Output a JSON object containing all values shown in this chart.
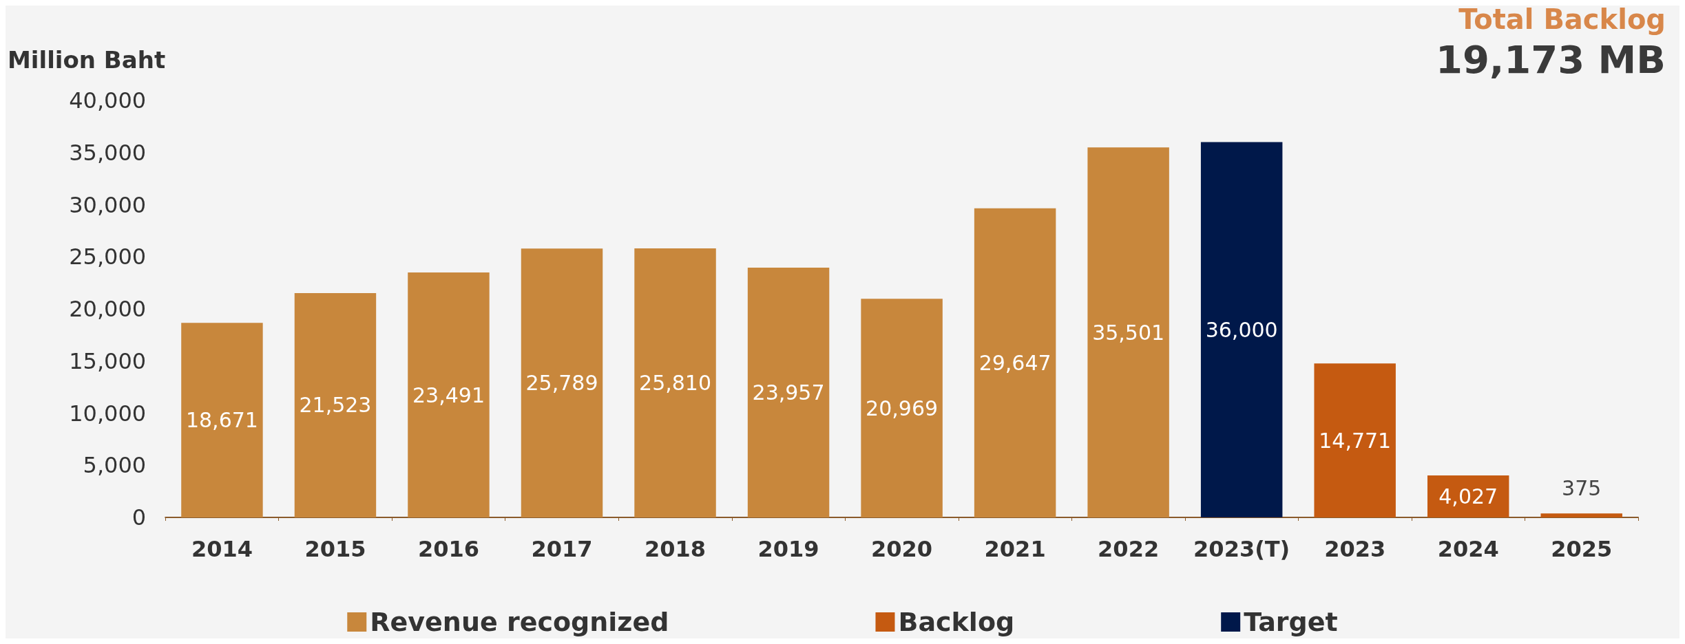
{
  "chart_data": {
    "type": "bar",
    "ylabel": "Million Baht",
    "categories": [
      "2014",
      "2015",
      "2016",
      "2017",
      "2018",
      "2019",
      "2020",
      "2021",
      "2022",
      "2023(T)",
      "2023",
      "2024",
      "2025"
    ],
    "series": [
      {
        "name": "Revenue recognized",
        "color": "#c8873c",
        "values": [
          18671,
          21523,
          23491,
          25789,
          25810,
          23957,
          20969,
          29647,
          35501,
          null,
          null,
          null,
          null
        ],
        "value_labels": [
          "18,671",
          "21,523",
          "23,491",
          "25,789",
          "25,810",
          "23,957",
          "20,969",
          "29,647",
          "35,501",
          null,
          null,
          null,
          null
        ]
      },
      {
        "name": "Backlog",
        "color": "#c55a11",
        "values": [
          null,
          null,
          null,
          null,
          null,
          null,
          null,
          null,
          null,
          null,
          14771,
          4027,
          375
        ],
        "value_labels": [
          null,
          null,
          null,
          null,
          null,
          null,
          null,
          null,
          null,
          null,
          "14,771",
          "4,027",
          "375"
        ]
      },
      {
        "name": "Target",
        "color": "#00184a",
        "values": [
          null,
          null,
          null,
          null,
          null,
          null,
          null,
          null,
          null,
          36000,
          null,
          null,
          null
        ],
        "value_labels": [
          null,
          null,
          null,
          null,
          null,
          null,
          null,
          null,
          null,
          "36,000",
          null,
          null,
          null
        ]
      }
    ],
    "stacked": true,
    "ylim": [
      0,
      40000
    ],
    "yticks": [
      0,
      {
        "value": 5000,
        "label": "5,000"
      },
      {
        "value": 10000,
        "label": "10,000"
      },
      {
        "value": 15000,
        "label": "15,000"
      },
      {
        "value": 20000,
        "label": "20,000"
      },
      {
        "value": 25000,
        "label": "25,000"
      },
      {
        "value": 30000,
        "label": "30,000"
      },
      {
        "value": 35000,
        "label": "35,000"
      },
      {
        "value": 40000,
        "label": "40,000"
      }
    ],
    "grid": false,
    "legend": "bottom",
    "annotations": [
      "Total Backlog",
      "19,173 MB"
    ]
  }
}
